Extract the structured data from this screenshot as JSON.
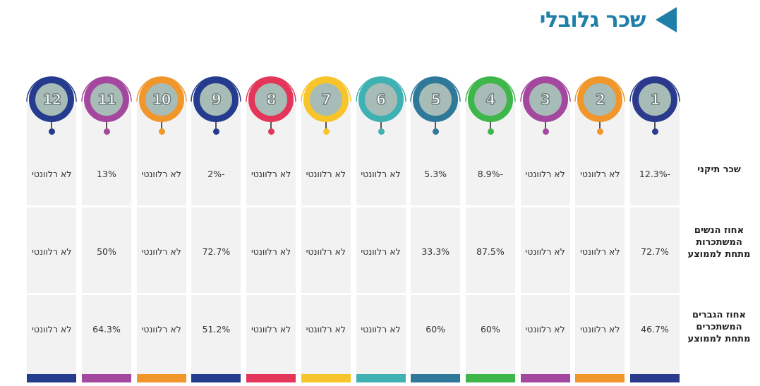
{
  "title": "שכר גלובלי",
  "colors": {
    "title": "#1f7fa9",
    "badge_fill": "#a7bcb7"
  },
  "row_labels": [
    "שכר תיקני",
    "אחוז הנשים המשתכרות מתחת לממוצע",
    "אחוז הגברים המשתכרים מתחת לממוצע"
  ],
  "columns": [
    {
      "num": "1",
      "color": "#2b3a8c",
      "values": [
        "-12.3%",
        "72.7%",
        "46.7%"
      ]
    },
    {
      "num": "2",
      "color": "#f0962a",
      "values": [
        "לא רלוונטי",
        "לא רלוונטי",
        "לא רלוונטי"
      ]
    },
    {
      "num": "3",
      "color": "#a4479e",
      "values": [
        "לא רלוונטי",
        "לא רלוונטי",
        "לא רלוונטי"
      ]
    },
    {
      "num": "4",
      "color": "#3db64a",
      "values": [
        "-8.9%",
        "87.5%",
        "60%"
      ]
    },
    {
      "num": "5",
      "color": "#2e7899",
      "values": [
        "5.3%",
        "33.3%",
        "60%"
      ]
    },
    {
      "num": "6",
      "color": "#3fb1b3",
      "values": [
        "לא רלוונטי",
        "לא רלוונטי",
        "לא רלוונטי"
      ]
    },
    {
      "num": "7",
      "color": "#f7c52a",
      "values": [
        "לא רלוונטי",
        "לא רלוונטי",
        "לא רלוונטי"
      ]
    },
    {
      "num": "8",
      "color": "#e3365a",
      "values": [
        "לא רלוונטי",
        "לא רלוונטי",
        "לא רלוונטי"
      ]
    },
    {
      "num": "9",
      "color": "#243b8e",
      "values": [
        "-2%",
        "72.7%",
        "51.2%"
      ]
    },
    {
      "num": "10",
      "color": "#f0962a",
      "values": [
        "לא רלוונטי",
        "לא רלוונטי",
        "לא רלוונטי"
      ]
    },
    {
      "num": "11",
      "color": "#a4479e",
      "values": [
        "13%",
        "50%",
        "64.3%"
      ]
    },
    {
      "num": "12",
      "color": "#243b8e",
      "values": [
        "לא רלוונטי",
        "לא רלוונטי",
        "לא רלוונטי"
      ]
    }
  ]
}
